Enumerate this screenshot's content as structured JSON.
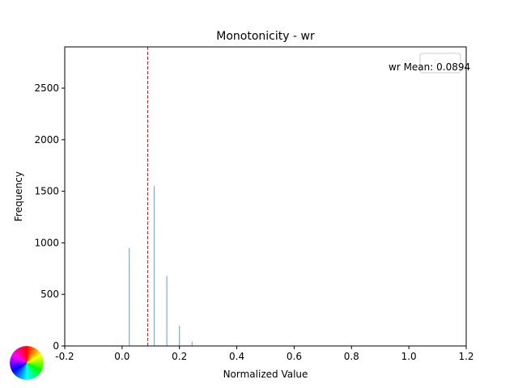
{
  "chart_data": {
    "type": "bar",
    "title": "Monotonicity - wr",
    "xlabel": "Normalized Value",
    "ylabel": "Frequency",
    "xlim": [
      -0.2,
      1.2
    ],
    "ylim": [
      0,
      2900
    ],
    "x_ticks": [
      -0.2,
      0.0,
      0.2,
      0.4,
      0.6,
      0.8,
      1.0,
      1.2
    ],
    "y_ticks": [
      0,
      500,
      1000,
      1500,
      2000,
      2500
    ],
    "x_tick_labels": [
      "-0.2",
      "0.0",
      "0.2",
      "0.4",
      "0.6",
      "0.8",
      "1.0",
      "1.2"
    ],
    "y_tick_labels": [
      "0",
      "500",
      "1000",
      "1500",
      "2000",
      "2500"
    ],
    "bars": [
      {
        "x": 0.025,
        "count": 950
      },
      {
        "x": 0.112,
        "count": 1550
      },
      {
        "x": 0.156,
        "count": 680
      },
      {
        "x": 0.2,
        "count": 195
      },
      {
        "x": 0.244,
        "count": 40
      }
    ],
    "mean_line": {
      "value": 0.0894,
      "label": "wr Mean: 0.0894",
      "color": "#d62728"
    },
    "bar_color": "#1f77b4",
    "grid": false,
    "legend": "top-right"
  }
}
